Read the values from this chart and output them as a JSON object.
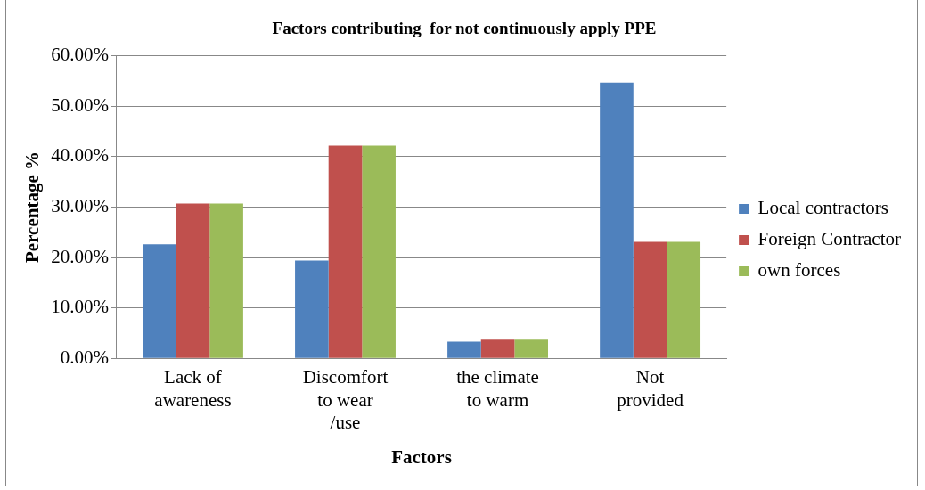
{
  "chart_data": {
    "type": "bar",
    "title": "Factors contributing  for not continuously apply PPE",
    "xlabel": "Factors",
    "ylabel": "Percentage %",
    "categories": [
      [
        "Lack of",
        "awareness"
      ],
      [
        "Discomfort",
        "to wear",
        "/use"
      ],
      [
        "the climate",
        "to warm"
      ],
      [
        "Not",
        "provided"
      ]
    ],
    "series": [
      {
        "name": "Local contractors",
        "color": "#4f81bd",
        "values": [
          22.6,
          19.4,
          3.3,
          54.7
        ]
      },
      {
        "name": "Foreign Contractor",
        "color": "#c0504d",
        "values": [
          30.7,
          42.2,
          3.7,
          23.1
        ]
      },
      {
        "name": "own forces",
        "color": "#9bbb59",
        "values": [
          30.7,
          42.2,
          3.7,
          23.1
        ]
      }
    ],
    "ylim": [
      0,
      60
    ],
    "yticks": [
      {
        "value": 0,
        "label": "0.00%"
      },
      {
        "value": 10,
        "label": "10.00%"
      },
      {
        "value": 20,
        "label": "20.00%"
      },
      {
        "value": 30,
        "label": "30.00%"
      },
      {
        "value": 40,
        "label": "40.00%"
      },
      {
        "value": 50,
        "label": "50.00%"
      },
      {
        "value": 60,
        "label": "60.00%"
      }
    ],
    "grid": "y",
    "legend": "right"
  }
}
